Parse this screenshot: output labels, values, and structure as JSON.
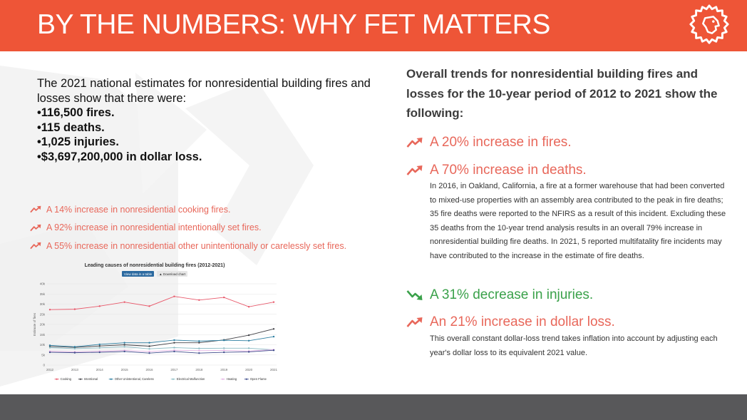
{
  "header": {
    "title": "BY THE NUMBERS: WHY FET MATTERS",
    "background": "#ee5537",
    "logo_icon": "lion-head-logo-icon"
  },
  "intro": {
    "lead": "The 2021 national estimates for nonresidential building fires and losses show that there were:",
    "bullets": [
      "•116,500 fires.",
      "•115 deaths.",
      "•1,025 injuries.",
      "•$3,697,200,000 in dollar loss."
    ]
  },
  "small_trends": {
    "arrow_icon": "trend-up-arrow-icon",
    "color": "#e8675a",
    "items": [
      "A 14% increase in nonresidential cooking fires.",
      "A 92% increase in nonresidential intentionally set fires.",
      "A 55% increase in nonresidential other unintentionally or carelessly set fires."
    ]
  },
  "chart_buttons": {
    "table": "View data in a table",
    "download": "▲ Download chart"
  },
  "chart_data": {
    "type": "line",
    "title": "Leading causes of nonresidential building fires (2012-2021)",
    "ylabel": "Estimate of fires",
    "xlabel": "",
    "x": [
      2012,
      2013,
      2014,
      2015,
      2016,
      2017,
      2018,
      2019,
      2020,
      2021
    ],
    "yticks": [
      "0",
      "5k",
      "10k",
      "15k",
      "20k",
      "25k",
      "30k",
      "35k",
      "40k"
    ],
    "ylim": [
      0,
      40000
    ],
    "grid": true,
    "legend_position": "bottom",
    "series": [
      {
        "name": "Cooking",
        "color": "#e8596b",
        "values": [
          27300,
          27500,
          29000,
          31000,
          29000,
          33800,
          32000,
          33300,
          28700,
          31000
        ]
      },
      {
        "name": "Intentional",
        "color": "#434348",
        "values": [
          9200,
          8700,
          9400,
          10000,
          9300,
          11000,
          11000,
          12400,
          14700,
          17800
        ]
      },
      {
        "name": "Other Unintentional, Careless",
        "color": "#2c7ea1",
        "values": [
          9700,
          9000,
          10200,
          11000,
          11000,
          12300,
          11800,
          12200,
          12000,
          14000
        ]
      },
      {
        "name": "Electrical Malfunction",
        "color": "#8bbcc4",
        "values": [
          8600,
          8100,
          8500,
          9000,
          8000,
          8600,
          8200,
          8300,
          8300,
          7500
        ]
      },
      {
        "name": "Heating",
        "color": "#e4b3e4",
        "values": [
          6800,
          6500,
          6800,
          7200,
          6700,
          7300,
          7100,
          7200,
          6900,
          7600
        ]
      },
      {
        "name": "Open Flame",
        "color": "#3f4d8c",
        "values": [
          6300,
          6100,
          6300,
          6700,
          5900,
          6700,
          5900,
          6300,
          6500,
          7300
        ]
      }
    ]
  },
  "right": {
    "heading": "Overall trends for nonresidential building fires and losses for the 10-year period of 2012 to 2021 show the following:",
    "trends": [
      {
        "label": "A 20% increase in fires.",
        "arrow_icon": "trend-up-arrow-icon",
        "color": "#e8675a"
      },
      {
        "label": "A 70% increase in deaths.",
        "arrow_icon": "trend-up-arrow-icon",
        "color": "#e8675a"
      },
      {
        "label": "A 31% decrease in injuries.",
        "arrow_icon": "trend-down-arrow-icon",
        "color": "#3aa14a"
      },
      {
        "label": "An 21% increase in dollar loss.",
        "arrow_icon": "trend-up-arrow-icon",
        "color": "#e8675a"
      }
    ],
    "deaths_note": "In 2016, in Oakland, California, a fire at a former warehouse that had been converted to mixed-use properties with an assembly area contributed to the peak in fire deaths; 35 fire deaths were reported to the NFIRS as a result of this incident. Excluding these 35 deaths from the 10-year trend analysis results in an overall 79% increase in nonresidential building fire deaths. In 2021, 5 reported multifatality fire incidents may have contributed to the increase in the estimate of fire deaths.",
    "dollar_note": "This overall constant dollar-loss trend takes inflation into account by adjusting each year's dollar loss to its equivalent 2021 value."
  },
  "footer": {
    "background": "#58585a"
  }
}
